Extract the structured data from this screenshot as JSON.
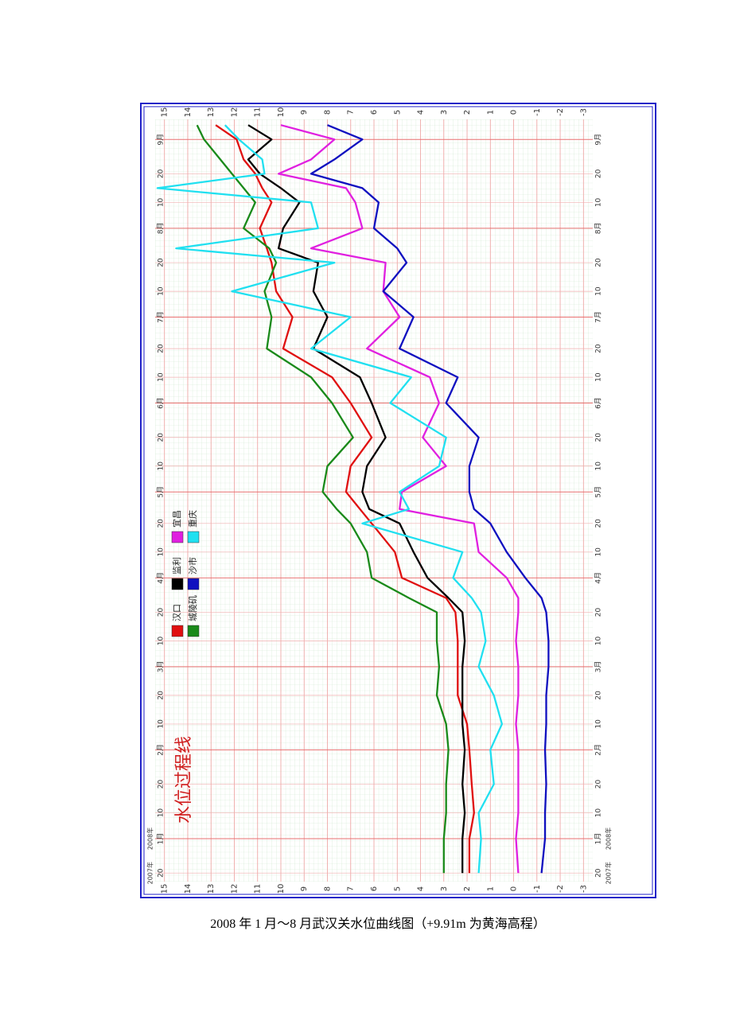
{
  "chart_data": {
    "type": "line",
    "title": "水位过程线",
    "x": [
      "2007-12-20",
      "2008-01-01",
      "2008-01-10",
      "2008-01-20",
      "2008-02-01",
      "2008-02-10",
      "2008-02-20",
      "2008-03-01",
      "2008-03-10",
      "2008-03-20",
      "2008-03-25",
      "2008-04-01",
      "2008-04-10",
      "2008-04-20",
      "2008-04-25",
      "2008-05-01",
      "2008-05-10",
      "2008-05-20",
      "2008-06-01",
      "2008-06-10",
      "2008-06-20",
      "2008-07-01",
      "2008-07-10",
      "2008-07-20",
      "2008-07-25",
      "2008-08-01",
      "2008-08-10",
      "2008-08-15",
      "2008-08-20",
      "2008-08-25",
      "2008-09-01",
      "2008-09-06"
    ],
    "series": [
      {
        "name": "汉口",
        "color": "#e01010",
        "values": [
          1.9,
          1.9,
          1.7,
          1.8,
          1.9,
          2.0,
          2.4,
          2.4,
          2.4,
          2.5,
          2.9,
          4.8,
          5.1,
          6.1,
          6.6,
          7.2,
          7.0,
          6.1,
          7.0,
          7.8,
          9.9,
          9.5,
          10.2,
          10.4,
          10.6,
          10.9,
          10.4,
          10.8,
          11.1,
          11.6,
          11.9,
          12.8
        ]
      },
      {
        "name": "监利",
        "color": "#000000",
        "values": [
          2.2,
          2.2,
          2.1,
          2.2,
          2.1,
          2.2,
          2.2,
          2.2,
          2.1,
          2.2,
          2.8,
          3.7,
          4.3,
          4.9,
          6.2,
          6.5,
          6.3,
          5.5,
          6.1,
          6.6,
          8.6,
          8.0,
          8.6,
          8.4,
          10.1,
          9.9,
          9.2,
          10.0,
          10.9,
          11.4,
          10.4,
          11.4
        ]
      },
      {
        "name": "宜昌",
        "color": "#e020e0",
        "values": [
          -0.2,
          -0.1,
          -0.2,
          -0.2,
          -0.2,
          -0.1,
          -0.2,
          -0.2,
          -0.1,
          -0.2,
          -0.2,
          0.3,
          1.5,
          1.7,
          4.9,
          4.8,
          2.9,
          3.9,
          3.2,
          3.6,
          6.3,
          4.9,
          5.6,
          5.5,
          8.7,
          6.5,
          6.8,
          7.2,
          10.1,
          8.7,
          7.7,
          10.0
        ]
      },
      {
        "name": "城陵矶",
        "color": "#1a8a1a",
        "values": [
          3.0,
          3.0,
          2.9,
          2.9,
          2.8,
          2.9,
          3.3,
          3.2,
          3.3,
          3.3,
          4.5,
          6.1,
          6.3,
          7.0,
          7.6,
          8.2,
          8.0,
          6.9,
          7.8,
          8.7,
          10.6,
          10.4,
          10.7,
          10.2,
          10.5,
          11.6,
          11.1,
          11.6,
          12.1,
          12.6,
          13.3,
          13.6
        ]
      },
      {
        "name": "沙市",
        "color": "#1010c0",
        "values": [
          -1.2,
          -1.35,
          -1.35,
          -1.4,
          -1.35,
          -1.4,
          -1.4,
          -1.5,
          -1.5,
          -1.4,
          -1.2,
          -0.5,
          0.3,
          1.0,
          1.7,
          1.9,
          1.9,
          1.5,
          2.9,
          2.4,
          4.9,
          4.3,
          5.6,
          4.6,
          5.0,
          6.0,
          5.8,
          6.5,
          8.7,
          7.7,
          6.5,
          8.0
        ]
      },
      {
        "name": "重庆",
        "color": "#20e0f0",
        "values": [
          1.5,
          1.4,
          1.5,
          0.85,
          1.0,
          0.5,
          0.85,
          1.5,
          1.2,
          1.4,
          1.8,
          2.6,
          2.2,
          6.5,
          4.5,
          4.9,
          3.2,
          2.9,
          5.3,
          4.4,
          8.7,
          7.0,
          12.1,
          7.7,
          14.5,
          8.4,
          8.7,
          15.3,
          10.7,
          10.8,
          11.8,
          12.4
        ]
      }
    ],
    "xlim": [
      "2007-12-17",
      "2008-09-08"
    ],
    "xticks": [
      {
        "value": "2007-12-20",
        "label": "20"
      },
      {
        "value": "2008-01-01",
        "label": "1月"
      },
      {
        "value": "2008-01-10",
        "label": "10"
      },
      {
        "value": "2008-01-20",
        "label": "20"
      },
      {
        "value": "2008-02-01",
        "label": "2月"
      },
      {
        "value": "2008-02-10",
        "label": "10"
      },
      {
        "value": "2008-02-20",
        "label": "20"
      },
      {
        "value": "2008-03-01",
        "label": "3月"
      },
      {
        "value": "2008-03-10",
        "label": "10"
      },
      {
        "value": "2008-03-20",
        "label": "20"
      },
      {
        "value": "2008-04-01",
        "label": "4月"
      },
      {
        "value": "2008-04-10",
        "label": "10"
      },
      {
        "value": "2008-04-20",
        "label": "20"
      },
      {
        "value": "2008-05-01",
        "label": "5月"
      },
      {
        "value": "2008-05-10",
        "label": "10"
      },
      {
        "value": "2008-05-20",
        "label": "20"
      },
      {
        "value": "2008-06-01",
        "label": "6月"
      },
      {
        "value": "2008-06-10",
        "label": "10"
      },
      {
        "value": "2008-06-20",
        "label": "20"
      },
      {
        "value": "2008-07-01",
        "label": "7月"
      },
      {
        "value": "2008-07-10",
        "label": "10"
      },
      {
        "value": "2008-07-20",
        "label": "20"
      },
      {
        "value": "2008-08-01",
        "label": "8月"
      },
      {
        "value": "2008-08-10",
        "label": "10"
      },
      {
        "value": "2008-08-20",
        "label": "20"
      },
      {
        "value": "2008-09-01",
        "label": "9月"
      }
    ],
    "x_year_labels": [
      {
        "value": "2007-12-20",
        "label": "2007年"
      },
      {
        "value": "2008-01-01",
        "label": "2008年"
      }
    ],
    "ylim": [
      -3.4,
      15.4
    ],
    "yticks": [
      15,
      14,
      13,
      12,
      11,
      10,
      9,
      8,
      7,
      6,
      5,
      4,
      3,
      2,
      1,
      0,
      -1,
      -2,
      -3
    ],
    "grid": true
  },
  "caption": "2008 年 1 月～8 月武汉关水位曲线图（+9.91m 为黄海高程）"
}
